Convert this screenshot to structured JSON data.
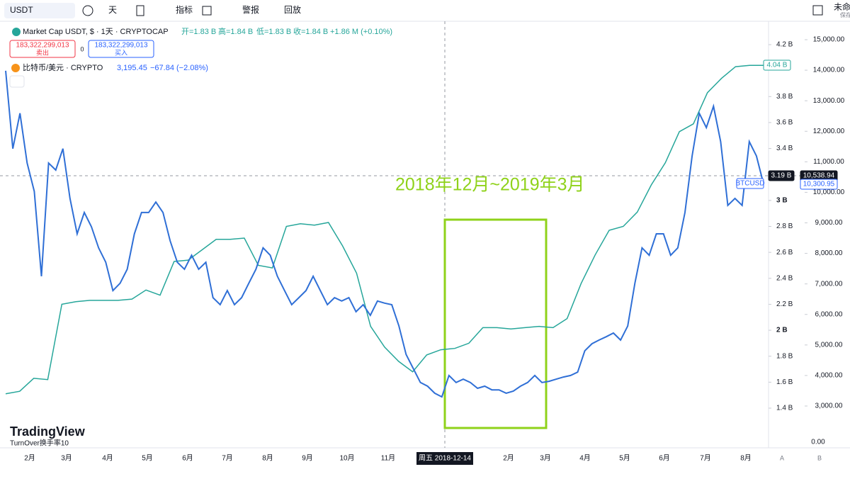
{
  "toolbar": {
    "symbol": "USDT",
    "interval": "天",
    "indicators": "指标",
    "alerts": "警报",
    "replay": "回放",
    "layout_name": "未命",
    "save": "保存"
  },
  "legend": {
    "open": "开=1.83 B",
    "high": "高=1.84 B",
    "low": "低=1.83 B",
    "close": "收=1.84 B",
    "change": "+1.86 M (+0.10%)",
    "sell_price": "183,322,299,013",
    "sell": "卖出",
    "spread": "0",
    "buy_price": "183,322,299,013",
    "buy": "买入",
    "btc_price": "3,195.45",
    "btc_change": "−67.84 (−2.08%)"
  },
  "chart_data": {
    "type": "line",
    "annotation": "2018年12月~2019年3月",
    "series": [
      {
        "name": "Market Cap USDT, $ · 1天 · CRYPTOCAP",
        "color": "#26a69a",
        "values": [
          1.51,
          1.53,
          1.63,
          1.62,
          2.2,
          2.22,
          2.23,
          2.23,
          2.23,
          2.24,
          2.31,
          2.27,
          2.53,
          2.54,
          2.62,
          2.7,
          2.7,
          2.71,
          2.5,
          2.48,
          2.8,
          2.82,
          2.81,
          2.83,
          2.65,
          2.44,
          2.03,
          1.87,
          1.76,
          1.68,
          1.81,
          1.85,
          1.86,
          1.9,
          2.02,
          2.02,
          2.01,
          2.02,
          2.03,
          2.02,
          2.09,
          2.36,
          2.58,
          2.77,
          2.8,
          2.91,
          3.12,
          3.29,
          3.53,
          3.59,
          3.83,
          3.94,
          4.03,
          4.04,
          4.04
        ]
      },
      {
        "name": "比特币/美元 · CRYPTO",
        "color": "#2f6fd6",
        "axis": "y2",
        "values": [
          13980,
          11430,
          12590,
          10960,
          10030,
          7250,
          10960,
          10730,
          11430,
          9800,
          8640,
          9340,
          8870,
          8180,
          7710,
          6780,
          7020,
          7480,
          8640,
          9340,
          9340,
          9680,
          9340,
          8410,
          7710,
          7480,
          7940,
          7480,
          7710,
          6550,
          6320,
          6780,
          6320,
          6550,
          7020,
          7480,
          8180,
          7940,
          7250,
          6780,
          6320,
          6550,
          6780,
          7250,
          6780,
          6320,
          6550,
          6440,
          6550,
          6090,
          6320,
          5970,
          6440,
          6370,
          6320,
          5620,
          4690,
          4230,
          3770,
          3650,
          3420,
          3300,
          4000,
          3770,
          3880,
          3770,
          3580,
          3650,
          3530,
          3530,
          3420,
          3490,
          3650,
          3770,
          4000,
          3770,
          3810,
          3880,
          3950,
          4000,
          4110,
          4810,
          5040,
          5160,
          5270,
          5390,
          5160,
          5620,
          7020,
          8180,
          7940,
          8640,
          8640,
          7940,
          8180,
          9340,
          11190,
          12590,
          12120,
          12820,
          11660,
          9570,
          9800,
          9570,
          11660,
          11190,
          10270
        ]
      }
    ],
    "ylim": [
      1.4,
      4.2
    ],
    "yticks": [
      {
        "value": 1.4,
        "label": "1.4 B"
      },
      {
        "value": 1.6,
        "label": "1.6 B"
      },
      {
        "value": 1.8,
        "label": "1.8 B"
      },
      {
        "value": 2,
        "label": "2 B"
      },
      {
        "value": 2.2,
        "label": "2.2 B"
      },
      {
        "value": 2.4,
        "label": "2.4 B"
      },
      {
        "value": 2.6,
        "label": "2.6 B"
      },
      {
        "value": 2.8,
        "label": "2.8 B"
      },
      {
        "value": 3,
        "label": "3 B"
      },
      {
        "value": 3.4,
        "label": "3.4 B"
      },
      {
        "value": 3.6,
        "label": "3.6 B"
      },
      {
        "value": 3.8,
        "label": "3.8 B"
      },
      {
        "value": 4.2,
        "label": "4.2 B"
      }
    ],
    "y2lim": [
      3000,
      15000
    ],
    "y2ticks": [
      {
        "value": 3000,
        "label": "3,000.00"
      },
      {
        "value": 4000,
        "label": "4,000.00"
      },
      {
        "value": 5000,
        "label": "5,000.00"
      },
      {
        "value": 6000,
        "label": "6,000.00"
      },
      {
        "value": 7000,
        "label": "7,000.00"
      },
      {
        "value": 8000,
        "label": "8,000.00"
      },
      {
        "value": 9000,
        "label": "9,000.00"
      },
      {
        "value": 10000,
        "label": "10,000.00"
      },
      {
        "value": 11000,
        "label": "11,000.00"
      },
      {
        "value": 12000,
        "label": "12,000.00"
      },
      {
        "value": 13000,
        "label": "13,000.00"
      },
      {
        "value": 14000,
        "label": "14,000.00"
      },
      {
        "value": 15000,
        "label": "15,000.00"
      }
    ],
    "x_labels": [
      "2月",
      "3月",
      "4月",
      "5月",
      "6月",
      "7月",
      "8月",
      "9月",
      "10月",
      "11月",
      "周五 2018-12-14",
      "2月",
      "3月",
      "4月",
      "5月",
      "6月",
      "7月",
      "8月"
    ],
    "tags": {
      "cap_last": "4.04 B",
      "cap_cross": "3.19 B",
      "btc_cross": "10,538.94",
      "btc_last": "10,300.95",
      "btc_symbol": "BTCUSD"
    },
    "pane": {
      "indicator": "TurnOver换手率10",
      "zero": "0.00",
      "brand": "TradingView",
      "scale_a": "A",
      "scale_b": "B"
    }
  }
}
